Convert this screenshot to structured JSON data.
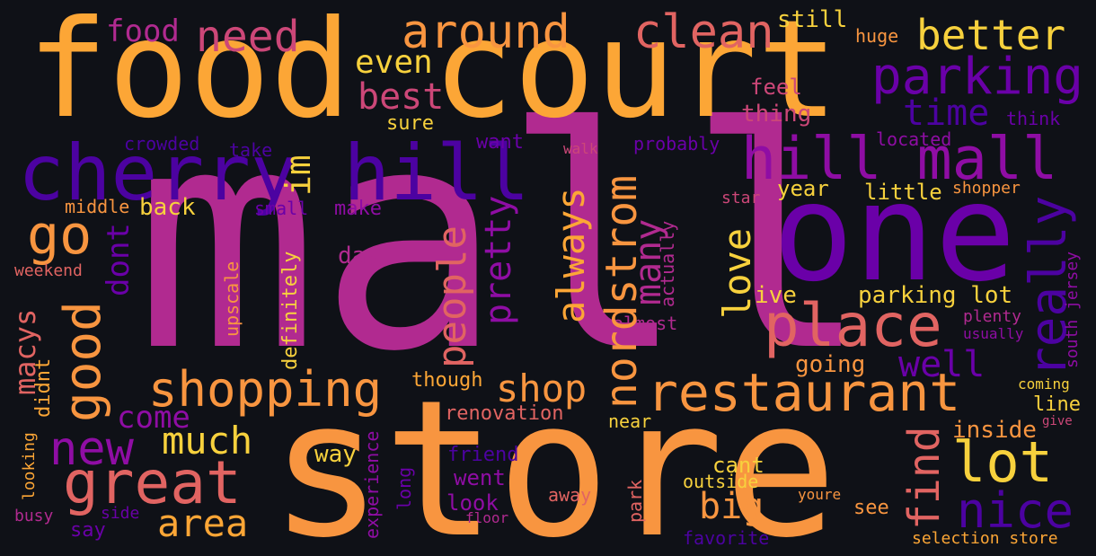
{
  "palette": {
    "background": "#0f1117",
    "yellow": "#f7d13d",
    "orange": "#fca636",
    "light_orange": "#f89540",
    "salmon": "#e16462",
    "rose": "#cc4778",
    "magenta": "#b12a90",
    "purple": "#8f0da4",
    "violet": "#6a00a8",
    "indigo": "#4c02a1"
  },
  "words": {
    "mall": "mall",
    "store": "store",
    "food_court": "food court",
    "one": "one",
    "cherry_hill": "cherry hill",
    "hill_mall": "hill mall",
    "restaurant": "restaurant",
    "place": "place",
    "shopping": "shopping",
    "nordstrom": "nordstrom",
    "parking": "parking",
    "around": "around",
    "clean": "clean",
    "better": "better",
    "need": "need",
    "food": "food",
    "still": "still",
    "huge": "huge",
    "even": "even",
    "best": "best",
    "time": "time",
    "feel": "feel",
    "thing": "thing",
    "think": "think",
    "sure": "sure",
    "crowded": "crowded",
    "take": "take",
    "want": "want",
    "walk": "walk",
    "probably": "probably",
    "located": "located",
    "im": "im",
    "really": "really",
    "year": "year",
    "little": "little",
    "shopper": "shopper",
    "star": "star",
    "middle": "middle",
    "back": "back",
    "small": "small",
    "make": "make",
    "go": "go",
    "always": "always",
    "people": "people",
    "pretty": "pretty",
    "many": "many",
    "love": "love",
    "good": "good",
    "dont": "dont",
    "weekend": "weekend",
    "day": "day",
    "actually": "actually",
    "south_jersey": "south jersey",
    "macys": "macys",
    "upscale": "upscale",
    "definitely": "definitely",
    "ive": "ive",
    "parking_lot": "parking lot",
    "almost": "almost",
    "plenty": "plenty",
    "usually": "usually",
    "didnt": "didnt",
    "going": "going",
    "well": "well",
    "though": "though",
    "shop": "shop",
    "coming": "coming",
    "come": "come",
    "renovation": "renovation",
    "line": "line",
    "give": "give",
    "new": "new",
    "much": "much",
    "find": "find",
    "near": "near",
    "inside": "inside",
    "looking": "looking",
    "great": "great",
    "way": "way",
    "friend": "friend",
    "lot": "lot",
    "went": "went",
    "experience": "experience",
    "long": "long",
    "cant": "cant",
    "nice": "nice",
    "look": "look",
    "outside": "outside",
    "big": "big",
    "area": "area",
    "away": "away",
    "park": "park",
    "youre": "youre",
    "see": "see",
    "busy": "busy",
    "side": "side",
    "say": "say",
    "floor": "floor",
    "favorite": "favorite",
    "selection_store": "selection store"
  }
}
